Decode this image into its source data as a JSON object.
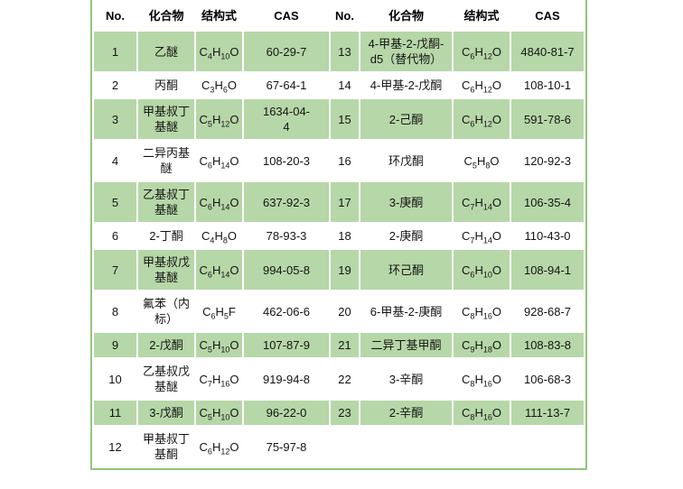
{
  "colors": {
    "row_green": "#b6d7a8",
    "border_green": "#93c47d",
    "background": "#ffffff",
    "text": "#141414"
  },
  "table": {
    "headers": [
      "No.",
      "化合物",
      "结构式",
      "CAS",
      "No.",
      "化合物",
      "结构式",
      "CAS"
    ],
    "rows": [
      {
        "shaded": true,
        "no": "1",
        "compound": "乙醚",
        "formula": "C4H10O",
        "cas": "60-29-7",
        "no2": "13",
        "compound2": "4-甲基-2-戊酮-d5（替代物）",
        "formula2": "C6H12O",
        "cas2": "4840-81-7"
      },
      {
        "shaded": false,
        "no": "2",
        "compound": "丙酮",
        "formula": "C3H6O",
        "cas": "67-64-1",
        "no2": "14",
        "compound2": "4-甲基-2-戊酮",
        "formula2": "C6H12O",
        "cas2": "108-10-1"
      },
      {
        "shaded": true,
        "no": "3",
        "compound": "甲基叔丁基醚",
        "formula": "C5H12O",
        "cas": "1634-04-4",
        "no2": "15",
        "compound2": "2-己酮",
        "formula2": "C6H12O",
        "cas2": "591-78-6"
      },
      {
        "shaded": false,
        "no": "4",
        "compound": "二异丙基醚",
        "formula": "C6H14O",
        "cas": "108-20-3",
        "no2": "16",
        "compound2": "环戊酮",
        "formula2": "C5H8O",
        "cas2": "120-92-3"
      },
      {
        "shaded": true,
        "no": "5",
        "compound": "乙基叔丁基醚",
        "formula": "C6H14O",
        "cas": "637-92-3",
        "no2": "17",
        "compound2": "3-庚酮",
        "formula2": "C7H14O",
        "cas2": "106-35-4"
      },
      {
        "shaded": false,
        "no": "6",
        "compound": "2-丁酮",
        "formula": "C4H8O",
        "cas": "78-93-3",
        "no2": "18",
        "compound2": "2-庚酮",
        "formula2": "C7H14O",
        "cas2": "110-43-0"
      },
      {
        "shaded": true,
        "no": "7",
        "compound": "甲基叔戊基醚",
        "formula": "C6H14O",
        "cas": "994-05-8",
        "no2": "19",
        "compound2": "环己酮",
        "formula2": "C6H10O",
        "cas2": "108-94-1"
      },
      {
        "shaded": false,
        "no": "8",
        "compound": "氟苯（内标）",
        "formula": "C6H5F",
        "cas": "462-06-6",
        "no2": "20",
        "compound2": "6-甲基-2-庚酮",
        "formula2": "C8H16O",
        "cas2": "928-68-7"
      },
      {
        "shaded": true,
        "no": "9",
        "compound": "2-戊酮",
        "formula": "C5H10O",
        "cas": "107-87-9",
        "no2": "21",
        "compound2": "二异丁基甲酮",
        "formula2": "C9H18O",
        "cas2": "108-83-8"
      },
      {
        "shaded": false,
        "no": "10",
        "compound": "乙基叔戊基醚",
        "formula": "C7H16O",
        "cas": "919-94-8",
        "no2": "22",
        "compound2": "3-辛酮",
        "formula2": "C8H16O",
        "cas2": "106-68-3"
      },
      {
        "shaded": true,
        "no": "11",
        "compound": "3-戊酮",
        "formula": "C5H10O",
        "cas": "96-22-0",
        "no2": "23",
        "compound2": "2-辛酮",
        "formula2": "C8H16O",
        "cas2": "111-13-7"
      },
      {
        "shaded": false,
        "no": "12",
        "compound": "甲基叔丁基酮",
        "formula": "C6H12O",
        "cas": "75-97-8",
        "no2": "",
        "compound2": "",
        "formula2": "",
        "cas2": ""
      }
    ]
  }
}
